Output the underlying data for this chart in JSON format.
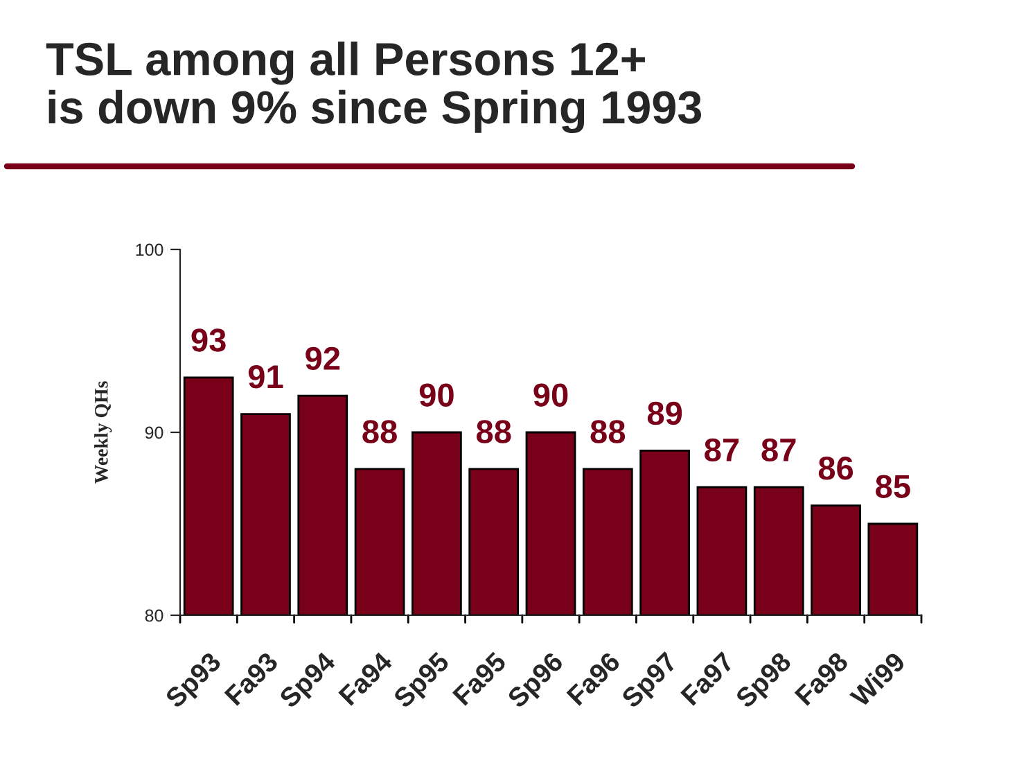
{
  "chart_data": {
    "type": "bar",
    "title": "TSL among all Persons 12+\nis down 9% since Spring 1993",
    "ylabel": "Weekly QHs",
    "categories": [
      "Sp93",
      "Fa93",
      "Sp94",
      "Fa94",
      "Sp95",
      "Fa95",
      "Sp96",
      "Fa96",
      "Sp97",
      "Fa97",
      "Sp98",
      "Fa98",
      "Wi99"
    ],
    "values": [
      93,
      91,
      92,
      88,
      90,
      88,
      90,
      88,
      89,
      87,
      87,
      86,
      85
    ],
    "color": "#780018",
    "ylim": [
      80,
      100
    ],
    "yticks": [
      80,
      90,
      100
    ],
    "data_labels": true,
    "grid": false,
    "legend": false
  }
}
